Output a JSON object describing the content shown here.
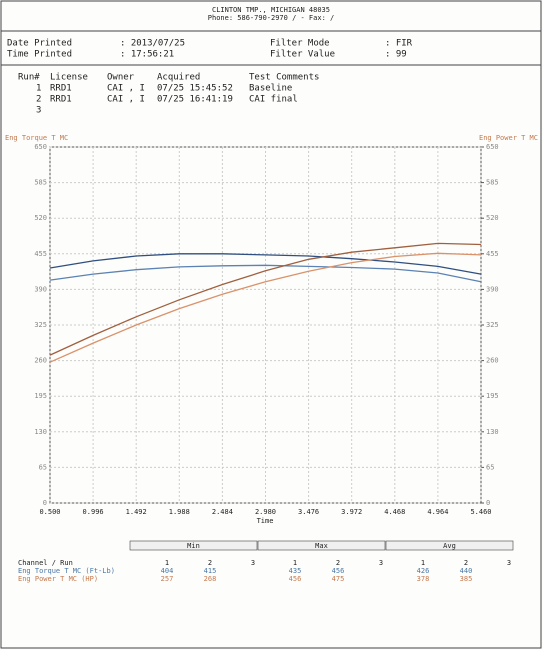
{
  "header": {
    "line1": "CLINTON TMP., MICHIGAN  48035",
    "line2": "Phone: 586-790-2970 /  - Fax:  /"
  },
  "info": {
    "date_label": "Date Printed",
    "date_value": ": 2013/07/25",
    "time_label": "Time Printed",
    "time_value": ": 17:56:21",
    "filter_mode_label": "Filter Mode",
    "filter_mode_value": ": FIR",
    "filter_value_label": "Filter Value",
    "filter_value_value": ": 99"
  },
  "runs": {
    "headers": [
      "Run#",
      "License",
      "Owner",
      "Acquired",
      "Test Comments"
    ],
    "rows": [
      [
        "1",
        "RRD1",
        "CAI , I",
        "07/25 15:45:52",
        "Baseline"
      ],
      [
        "2",
        "RRD1",
        "CAI , I",
        "07/25 16:41:19",
        "CAI final"
      ],
      [
        "3"
      ]
    ]
  },
  "chart_data": {
    "type": "line",
    "ylabel": "Eng Torque T MC",
    "y2label": "Eng Power T MC",
    "xlabel": "Time",
    "x": [
      0.5,
      0.996,
      1.492,
      1.988,
      2.484,
      2.98,
      3.476,
      3.972,
      4.468,
      4.964,
      5.46
    ],
    "xlim": [
      0.5,
      5.46
    ],
    "xticks": [
      {
        "value": 0.5,
        "label": "0.500"
      },
      {
        "value": 0.996,
        "label": "0.996"
      },
      {
        "value": 1.492,
        "label": "1.492"
      },
      {
        "value": 1.988,
        "label": "1.988"
      },
      {
        "value": 2.484,
        "label": "2.484"
      },
      {
        "value": 2.98,
        "label": "2.980"
      },
      {
        "value": 3.476,
        "label": "3.476"
      },
      {
        "value": 3.972,
        "label": "3.972"
      },
      {
        "value": 4.468,
        "label": "4.468"
      },
      {
        "value": 4.964,
        "label": "4.964"
      },
      {
        "value": 5.46,
        "label": "5.460"
      }
    ],
    "ylim": [
      0,
      650
    ],
    "yticks": [
      0,
      65,
      130,
      195,
      260,
      325,
      390,
      455,
      520,
      585,
      650
    ],
    "y2lim": [
      0,
      650
    ],
    "y2ticks": [
      0,
      65,
      130,
      195,
      260,
      325,
      390,
      455,
      520,
      585,
      650
    ],
    "grid": true,
    "series": [
      {
        "color": "#5b82b3",
        "values": [
          407,
          418,
          426,
          431,
          433,
          434,
          432,
          430,
          427,
          420,
          404
        ]
      },
      {
        "color": "#2f4f80",
        "values": [
          429,
          442,
          451,
          455,
          455,
          453,
          451,
          446,
          440,
          432,
          418
        ]
      },
      {
        "color": "#d9926a",
        "axis": "y2",
        "values": [
          257,
          292,
          325,
          355,
          381,
          404,
          423,
          439,
          450,
          456,
          453
        ]
      },
      {
        "color": "#a0603f",
        "axis": "y2",
        "values": [
          270,
          306,
          340,
          371,
          399,
          424,
          445,
          458,
          466,
          474,
          472
        ]
      }
    ]
  },
  "stats": {
    "groups": [
      "Min",
      "Max",
      "Avg"
    ],
    "channel_header": "Channel / Run",
    "run_numbers": [
      "1",
      "2",
      "3"
    ],
    "rows": [
      {
        "label": "Eng Torque T MC (Ft-Lb)",
        "values": [
          "404",
          "415",
          "",
          "435",
          "456",
          "",
          "426",
          "440",
          ""
        ]
      },
      {
        "label": "Eng Power T MC (HP)",
        "values": [
          "257",
          "268",
          "",
          "456",
          "475",
          "",
          "378",
          "385",
          ""
        ]
      }
    ]
  }
}
